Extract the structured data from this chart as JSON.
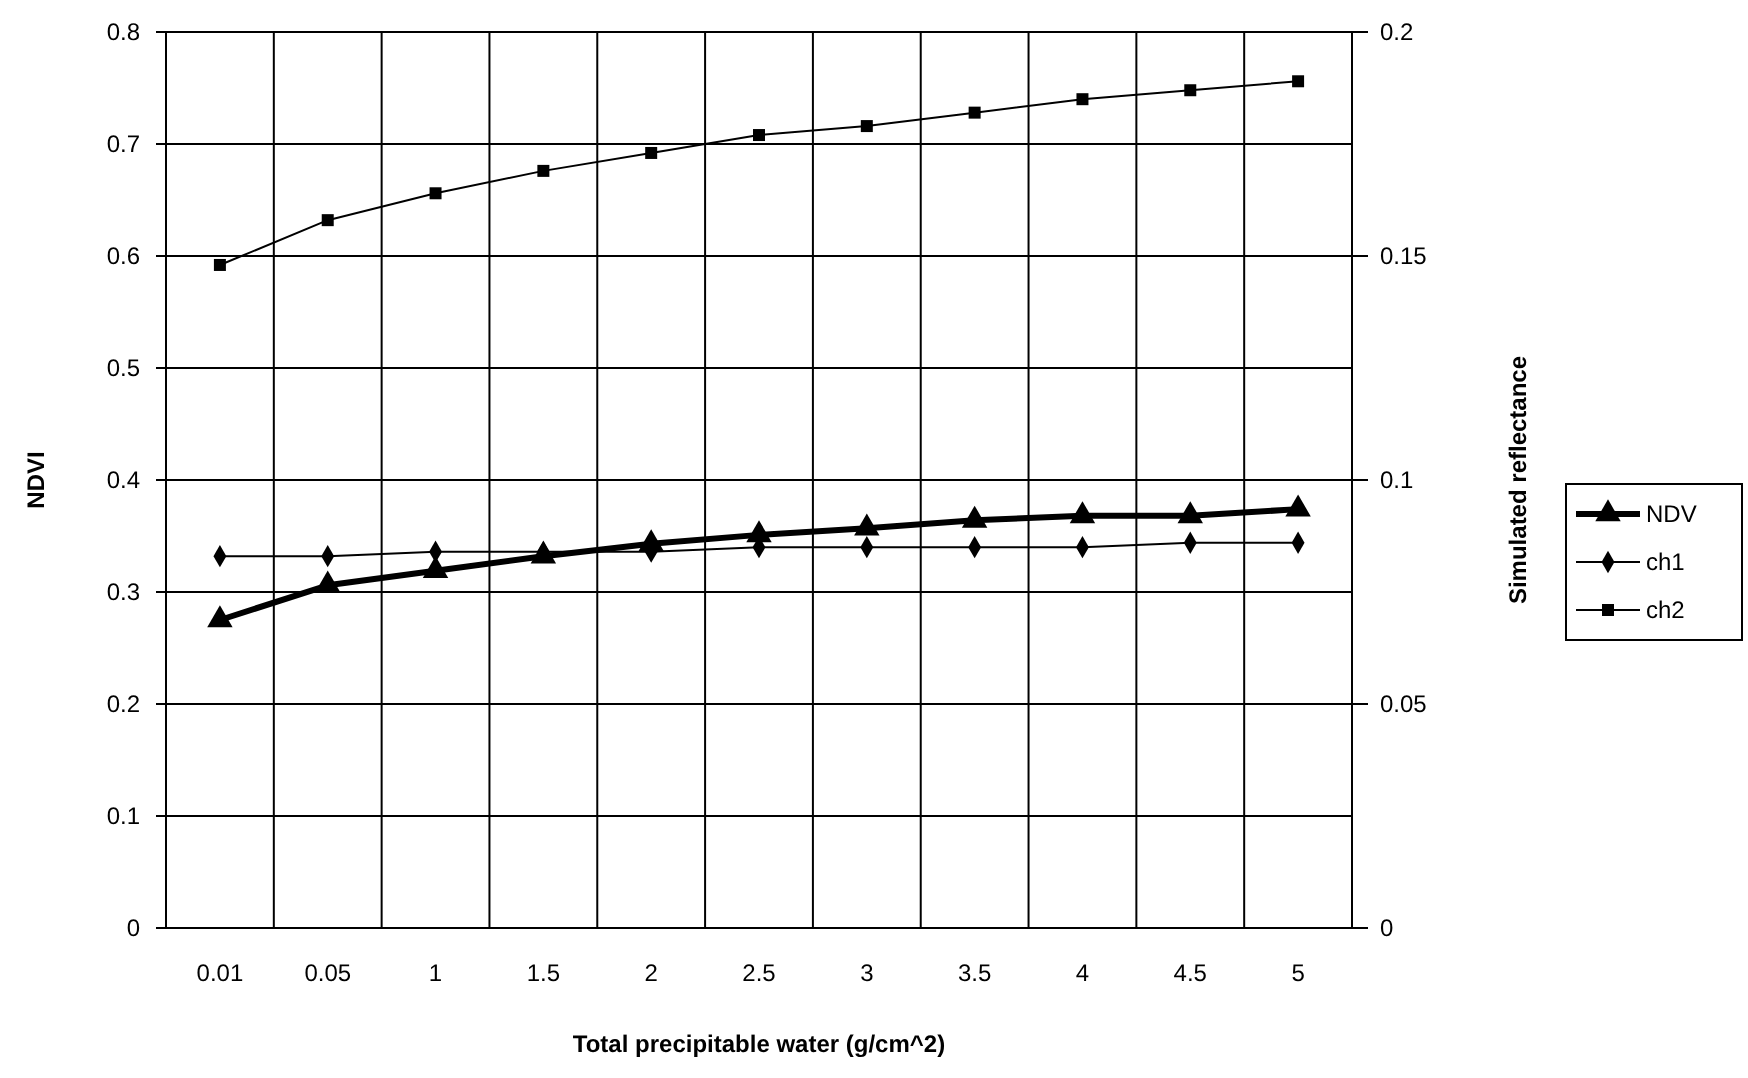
{
  "chart_data": {
    "type": "line",
    "xlabel": "Total precipitable water (g/cm^2)",
    "ylabel": "NDVI",
    "y2label": "Simulated reflectance",
    "categories": [
      "0.01",
      "0.05",
      "1",
      "1.5",
      "2",
      "2.5",
      "3",
      "3.5",
      "4",
      "4.5",
      "5"
    ],
    "series": [
      {
        "name": "NDV",
        "color": "#000000",
        "marker": "triangle",
        "values": [
          0.275,
          0.306,
          0.319,
          0.332,
          0.343,
          0.351,
          0.357,
          0.364,
          0.368,
          0.368,
          0.374
        ]
      },
      {
        "name": "ch1",
        "color": "#000000",
        "marker": "diamond",
        "axis": "y2",
        "values": [
          0.083,
          0.083,
          0.084,
          0.084,
          0.084,
          0.085,
          0.085,
          0.085,
          0.085,
          0.086,
          0.086
        ]
      },
      {
        "name": "ch2",
        "color": "#000000",
        "marker": "square",
        "axis": "y2",
        "values": [
          0.148,
          0.158,
          0.164,
          0.169,
          0.173,
          0.177,
          0.179,
          0.182,
          0.185,
          0.187,
          0.189
        ]
      }
    ],
    "ylim": [
      0,
      0.8
    ],
    "yticks": [
      {
        "value": 0,
        "label": "0"
      },
      {
        "value": 0.1,
        "label": "0.1"
      },
      {
        "value": 0.2,
        "label": "0.2"
      },
      {
        "value": 0.3,
        "label": "0.3"
      },
      {
        "value": 0.4,
        "label": "0.4"
      },
      {
        "value": 0.5,
        "label": "0.5"
      },
      {
        "value": 0.6,
        "label": "0.6"
      },
      {
        "value": 0.7,
        "label": "0.7"
      },
      {
        "value": 0.8,
        "label": "0.8"
      }
    ],
    "y2lim": [
      0,
      0.2
    ],
    "y2ticks": [
      {
        "value": 0,
        "label": "0"
      },
      {
        "value": 0.05,
        "label": "0.05"
      },
      {
        "value": 0.1,
        "label": "0.1"
      },
      {
        "value": 0.15,
        "label": "0.15"
      },
      {
        "value": 0.2,
        "label": "0.2"
      }
    ],
    "grid": true,
    "legend": "right",
    "line_style": "solid"
  }
}
